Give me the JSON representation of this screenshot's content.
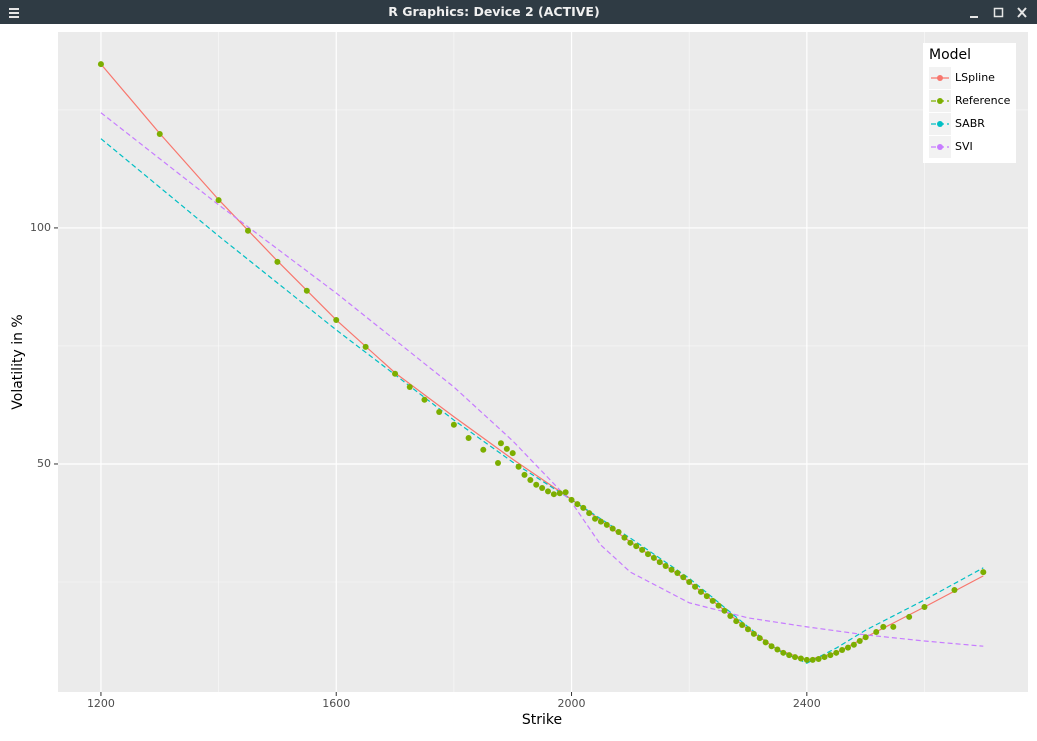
{
  "window": {
    "title": "R Graphics: Device 2 (ACTIVE)"
  },
  "chart_data": {
    "type": "line",
    "x_label": "Strike",
    "y_label": "Volatility in %",
    "legend_title": "Model",
    "legend_position": "top-right",
    "grid": true,
    "xlim": [
      1127,
      2776
    ],
    "ylim": [
      1.7,
      141.5
    ],
    "xticks": [
      1200,
      1600,
      2000,
      2400
    ],
    "yticks": [
      50,
      100
    ],
    "minor_xticks": [
      1400,
      1800,
      2200,
      2600
    ],
    "minor_yticks": [
      25,
      75,
      125
    ],
    "series": [
      {
        "name": "LSpline",
        "color": "#F8766D",
        "mode": "line",
        "linetype": "solid",
        "x": [
          1200,
          1300,
          1400,
          1500,
          1600,
          1700,
          1800,
          1900,
          2000,
          2100,
          2200,
          2300,
          2350,
          2400,
          2450,
          2500,
          2600,
          2700
        ],
        "values": [
          134.7,
          120,
          106,
          93,
          80.5,
          69.3,
          60,
          51,
          42.5,
          33.5,
          25,
          15,
          10.7,
          8.5,
          10,
          13.3,
          19.7,
          26.3
        ]
      },
      {
        "name": "Reference",
        "color": "#7CAE00",
        "mode": "points",
        "linetype": "dashed",
        "x": [
          1200,
          1300,
          1400,
          1450,
          1500,
          1550,
          1600,
          1650,
          1700,
          1725,
          1750,
          1775,
          1800,
          1825,
          1850,
          1875,
          1880,
          1890,
          1900,
          1910,
          1920,
          1930,
          1940,
          1950,
          1960,
          1970,
          1980,
          1990,
          2000,
          2010,
          2020,
          2030,
          2040,
          2050,
          2060,
          2070,
          2080,
          2090,
          2100,
          2110,
          2120,
          2130,
          2140,
          2150,
          2160,
          2170,
          2180,
          2190,
          2200,
          2210,
          2220,
          2230,
          2240,
          2250,
          2260,
          2270,
          2280,
          2290,
          2300,
          2310,
          2320,
          2330,
          2340,
          2350,
          2360,
          2370,
          2380,
          2390,
          2400,
          2410,
          2420,
          2430,
          2440,
          2450,
          2460,
          2470,
          2480,
          2490,
          2500,
          2518,
          2530,
          2547,
          2574,
          2600,
          2651,
          2700
        ],
        "values": [
          134.7,
          119.9,
          105.9,
          99.4,
          92.8,
          86.7,
          80.5,
          74.8,
          69.1,
          66.3,
          63.6,
          61.0,
          58.3,
          55.5,
          53.0,
          50.2,
          54.4,
          53.2,
          52.3,
          49.4,
          47.7,
          46.6,
          45.6,
          44.9,
          44.2,
          43.6,
          43.8,
          44.0,
          42.4,
          41.5,
          40.7,
          39.6,
          38.4,
          37.8,
          37.1,
          36.3,
          35.6,
          34.4,
          33.3,
          32.6,
          31.8,
          30.9,
          30.1,
          29.2,
          28.4,
          27.6,
          26.9,
          26.0,
          25.0,
          24.0,
          22.9,
          22.0,
          21.0,
          20.0,
          18.9,
          17.8,
          16.7,
          15.9,
          15.0,
          14.0,
          13.1,
          12.2,
          11.4,
          10.7,
          10.0,
          9.5,
          9.1,
          8.8,
          8.5,
          8.5,
          8.7,
          9.1,
          9.5,
          10.0,
          10.6,
          11.1,
          11.7,
          12.5,
          13.3,
          14.4,
          15.5,
          15.5,
          17.6,
          19.7,
          23.3,
          27.1
        ]
      },
      {
        "name": "SABR",
        "color": "#00BFC4",
        "mode": "line",
        "linetype": "dashed",
        "x": [
          1200,
          1400,
          1600,
          1700,
          1800,
          1900,
          2000,
          2100,
          2200,
          2300,
          2350,
          2400,
          2450,
          2500,
          2600,
          2700
        ],
        "values": [
          118.9,
          98.3,
          78.4,
          68.9,
          59.3,
          50.4,
          42.4,
          34.3,
          25.8,
          15.5,
          10.6,
          7.8,
          11.0,
          14.8,
          21.2,
          28.0
        ]
      },
      {
        "name": "SVI",
        "color": "#C77CFF",
        "mode": "line",
        "linetype": "dashed",
        "x": [
          1200,
          1400,
          1600,
          1800,
          1900,
          2000,
          2050,
          2100,
          2200,
          2300,
          2400,
          2500,
          2600,
          2700
        ],
        "values": [
          124.4,
          104.9,
          86.2,
          66.3,
          54.9,
          41.9,
          32.8,
          27.1,
          20.6,
          17.4,
          15.5,
          13.8,
          12.5,
          11.4
        ]
      }
    ]
  }
}
